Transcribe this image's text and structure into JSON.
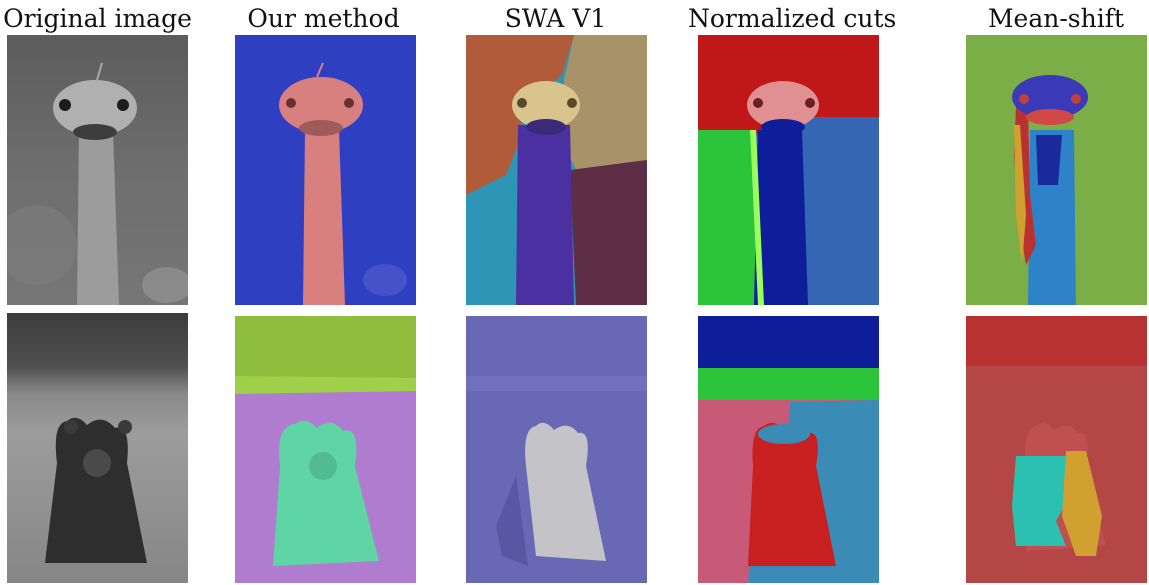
{
  "columns": [
    {
      "title": "Original image"
    },
    {
      "title": "Our method"
    },
    {
      "title": "SWA V1"
    },
    {
      "title": "Normalized cuts"
    },
    {
      "title": "Mean-shift"
    }
  ],
  "rows": [
    {
      "subject": "ostrich"
    },
    {
      "subject": "bear"
    }
  ],
  "colors": {
    "our_method_background_ostrich": "#2f3fc2",
    "our_method_ostrich": "#d88080",
    "our_method_grass": "#8fbe3f",
    "our_method_field": "#b07cd0",
    "our_method_bear": "#5fd4a4",
    "swa_v1_top_left": "#b05c3a",
    "swa_v1_top_right": "#a89268",
    "swa_v1_bottom_left": "#2e95b6",
    "swa_v1_bottom_right": "#5d2e46",
    "swa_v1_neck": "#4a30a0",
    "swa_v1_field": "#6868b4",
    "swa_v1_bear": "#c4c4c8",
    "ncuts_red": "#c01818",
    "ncuts_green": "#2cc43a",
    "ncuts_blue": "#3566b4",
    "ncuts_dark_blue": "#0e1e9a",
    "mean_shift_green": "#7cae48",
    "mean_shift_red": "#b83232",
    "mean_shift_teal": "#2cc0b0",
    "mean_shift_orange": "#d0a030"
  }
}
